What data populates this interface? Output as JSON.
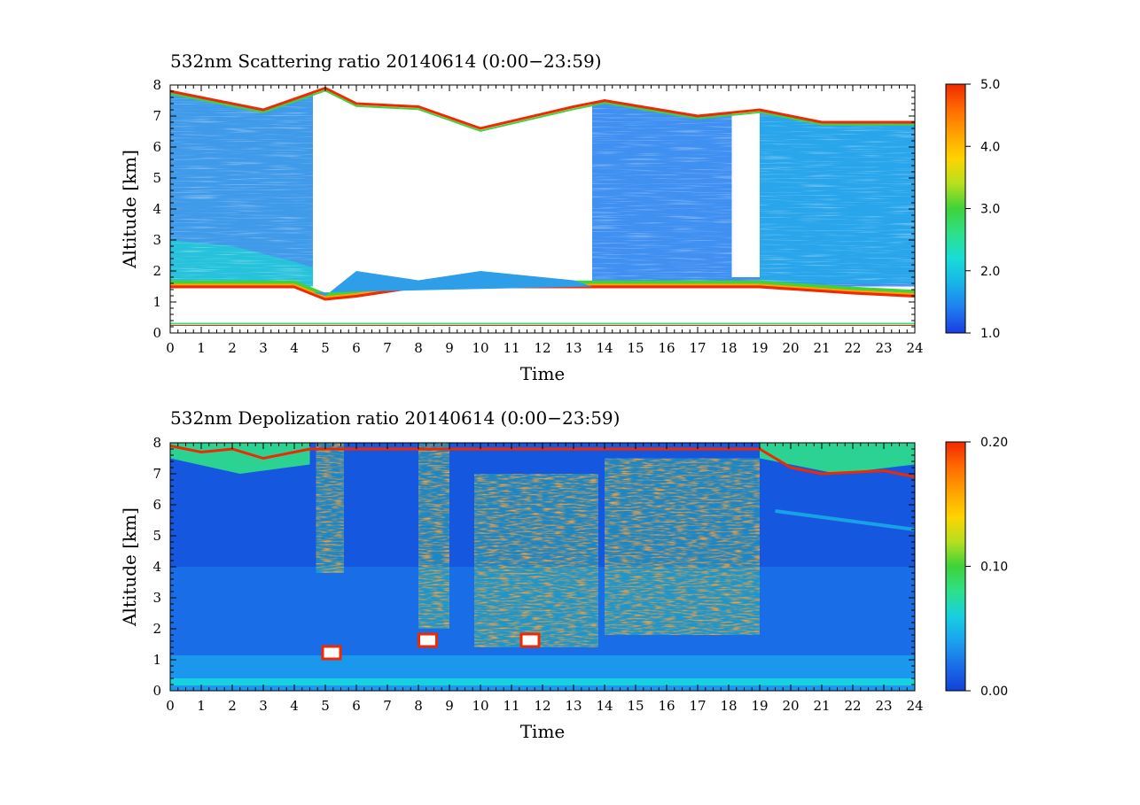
{
  "chart_data": [
    {
      "type": "heatmap",
      "title": "532nm Scattering ratio   20140614  (0:00−23:59)",
      "xlabel": "Time",
      "ylabel": "Altitude [km]",
      "xlim": [
        0,
        24
      ],
      "ylim": [
        0,
        8
      ],
      "xticks": [
        "0",
        "1",
        "2",
        "3",
        "4",
        "5",
        "6",
        "7",
        "8",
        "9",
        "10",
        "11",
        "12",
        "13",
        "14",
        "15",
        "16",
        "17",
        "18",
        "19",
        "20",
        "21",
        "22",
        "23",
        "24"
      ],
      "yticks": [
        "0",
        "1",
        "2",
        "3",
        "4",
        "5",
        "6",
        "7",
        "8"
      ],
      "colorbar": {
        "min": 1.0,
        "max": 5.0,
        "ticks": [
          "1.0",
          "2.0",
          "3.0",
          "4.0",
          "5.0"
        ],
        "colors": [
          "#1a3de0",
          "#1f7df0",
          "#18b4e6",
          "#19dcd6",
          "#2ee08a",
          "#3fd23a",
          "#b6e01e",
          "#ffd300",
          "#ffa200",
          "#ff6a00",
          "#f02a00"
        ]
      },
      "features": {
        "aerosol_layer_top_km": [
          [
            0,
            3.0
          ],
          [
            2,
            2.8
          ],
          [
            4,
            2.2
          ],
          [
            5,
            1.2
          ],
          [
            6,
            2.0
          ],
          [
            8,
            1.7
          ],
          [
            10,
            2.0
          ],
          [
            13,
            1.7
          ],
          [
            14,
            1.6
          ],
          [
            18,
            1.6
          ],
          [
            19,
            1.6
          ],
          [
            22,
            1.8
          ],
          [
            24,
            1.8
          ]
        ],
        "boundary_layer_base_km": [
          [
            0,
            1.5
          ],
          [
            4,
            1.5
          ],
          [
            5,
            1.1
          ],
          [
            6,
            1.2
          ],
          [
            8,
            1.5
          ],
          [
            13,
            1.5
          ],
          [
            14,
            1.5
          ],
          [
            18,
            1.5
          ],
          [
            19,
            1.5
          ],
          [
            22,
            1.3
          ],
          [
            24,
            1.2
          ]
        ],
        "near_surface_line_km": 0.3,
        "upper_cloud_base_km": [
          [
            0,
            7.8
          ],
          [
            3,
            7.2
          ],
          [
            5,
            7.9
          ],
          [
            6,
            7.4
          ],
          [
            8,
            7.3
          ],
          [
            10,
            6.6
          ],
          [
            13,
            7.3
          ],
          [
            14,
            7.5
          ],
          [
            17,
            7.0
          ],
          [
            19,
            7.2
          ],
          [
            21,
            6.8
          ],
          [
            24,
            6.8
          ]
        ],
        "clear_gaps_hours": [
          [
            4.6,
            13.6
          ],
          [
            18.1,
            19.0
          ]
        ]
      }
    },
    {
      "type": "heatmap",
      "title": "532nm Depolization ratio   20140614  (0:00−23:59)",
      "xlabel": "Time",
      "ylabel": "Altitude [km]",
      "xlim": [
        0,
        24
      ],
      "ylim": [
        0,
        8
      ],
      "xticks": [
        "0",
        "1",
        "2",
        "3",
        "4",
        "5",
        "6",
        "7",
        "8",
        "9",
        "10",
        "11",
        "12",
        "13",
        "14",
        "15",
        "16",
        "17",
        "18",
        "19",
        "20",
        "21",
        "22",
        "23",
        "24"
      ],
      "yticks": [
        "0",
        "1",
        "2",
        "3",
        "4",
        "5",
        "6",
        "7",
        "8"
      ],
      "colorbar": {
        "min": 0.0,
        "max": 0.2,
        "ticks": [
          "0.00",
          "0.10",
          "0.20"
        ],
        "colors": [
          "#1240d8",
          "#1a6ee8",
          "#1ba2ee",
          "#17d0e0",
          "#2ee08a",
          "#3fd23a",
          "#b6e01e",
          "#ffd300",
          "#ffa200",
          "#ff6a00",
          "#f02a00"
        ]
      },
      "features": {
        "speckle_regions": [
          [
            4.7,
            5.6,
            3.8,
            8.0
          ],
          [
            8.0,
            9.0,
            2.0,
            8.0
          ],
          [
            9.8,
            13.8,
            1.4,
            7.0
          ],
          [
            14.0,
            19.0,
            1.8,
            7.5
          ]
        ],
        "upper_cloud_hours": [
          [
            0,
            4.5
          ],
          [
            19,
            24
          ]
        ],
        "thin_layer_km": [
          [
            19.5,
            5.8
          ],
          [
            24,
            5.2
          ]
        ]
      }
    }
  ]
}
